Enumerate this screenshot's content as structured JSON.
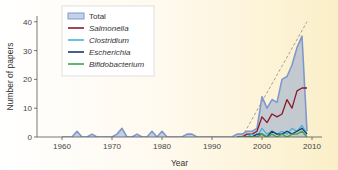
{
  "chart_data": {
    "type": "line",
    "x_label": "Year",
    "y_label": "Number of papers",
    "x": [
      1960,
      1961,
      1962,
      1963,
      1964,
      1965,
      1966,
      1967,
      1968,
      1969,
      1970,
      1971,
      1972,
      1973,
      1974,
      1975,
      1976,
      1977,
      1978,
      1979,
      1980,
      1981,
      1982,
      1983,
      1984,
      1985,
      1986,
      1987,
      1988,
      1989,
      1990,
      1991,
      1992,
      1993,
      1994,
      1995,
      1996,
      1997,
      1998,
      1999,
      2000,
      2001,
      2002,
      2003,
      2004,
      2005,
      2006,
      2007,
      2008,
      2009
    ],
    "xlim": [
      1955,
      2012
    ],
    "xticks": [
      1960,
      1970,
      1980,
      1990,
      2000,
      2010
    ],
    "ylim": [
      0,
      42
    ],
    "yticks": [
      0,
      10,
      20,
      30,
      40
    ],
    "grid": false,
    "legend": "upper left",
    "series": [
      {
        "name": "Total",
        "type": "area",
        "color": "#7f99cc",
        "values": [
          0,
          0,
          0,
          2,
          0,
          0,
          1,
          0,
          0,
          0,
          0,
          1,
          3,
          0,
          0,
          1,
          0,
          0,
          2,
          0,
          2,
          0,
          0,
          0,
          0,
          1,
          1,
          0,
          0,
          0,
          0,
          0,
          0,
          0,
          0,
          1,
          1,
          2,
          2,
          3,
          14,
          10,
          13,
          12,
          20,
          21,
          25,
          31,
          35,
          2
        ]
      },
      {
        "name": "Salmonella",
        "color": "#8b1a2b",
        "values": [
          null,
          null,
          null,
          null,
          null,
          null,
          null,
          null,
          null,
          null,
          null,
          null,
          null,
          null,
          null,
          null,
          null,
          null,
          null,
          null,
          null,
          null,
          null,
          null,
          null,
          null,
          null,
          null,
          null,
          null,
          null,
          null,
          null,
          null,
          null,
          0,
          0,
          1,
          1,
          2,
          7,
          5,
          8,
          7,
          8,
          13,
          10,
          16,
          17,
          17
        ]
      },
      {
        "name": "Clostridium",
        "color": "#4ab0d9",
        "values": [
          null,
          null,
          null,
          null,
          null,
          null,
          null,
          null,
          null,
          null,
          null,
          null,
          null,
          null,
          null,
          null,
          null,
          null,
          null,
          null,
          null,
          null,
          null,
          null,
          null,
          null,
          null,
          null,
          null,
          null,
          null,
          null,
          null,
          null,
          null,
          0,
          0,
          0,
          1,
          0,
          3,
          1,
          2,
          1,
          2,
          1,
          3,
          2,
          4,
          1
        ]
      },
      {
        "name": "Escherichia",
        "color": "#1a3a6e",
        "values": [
          null,
          null,
          null,
          null,
          null,
          null,
          null,
          null,
          null,
          null,
          null,
          null,
          null,
          null,
          null,
          null,
          null,
          null,
          null,
          null,
          null,
          null,
          null,
          null,
          null,
          null,
          null,
          null,
          null,
          null,
          null,
          null,
          null,
          null,
          null,
          0,
          0,
          0,
          0,
          1,
          1,
          0,
          2,
          1,
          1,
          2,
          1,
          2,
          3,
          1
        ]
      },
      {
        "name": "Bifidobacterium",
        "color": "#3aa64a",
        "values": [
          null,
          null,
          null,
          null,
          null,
          null,
          null,
          null,
          null,
          null,
          null,
          null,
          null,
          null,
          null,
          null,
          null,
          null,
          null,
          null,
          null,
          null,
          null,
          null,
          null,
          null,
          null,
          null,
          null,
          null,
          null,
          null,
          null,
          null,
          null,
          0,
          0,
          0,
          0,
          0,
          1,
          0,
          1,
          0,
          1,
          0,
          1,
          1,
          2,
          0
        ]
      },
      {
        "x": [
          1996,
          2009
        ],
        "values": [
          0,
          40
        ],
        "color": "#999999",
        "line_style": "dashed"
      }
    ]
  }
}
